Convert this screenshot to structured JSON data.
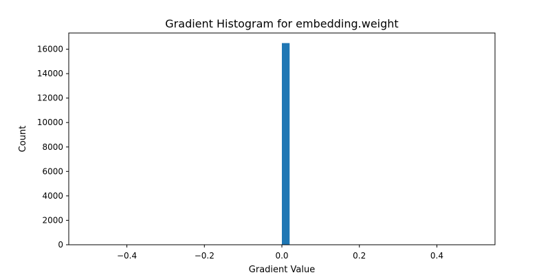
{
  "chart_data": {
    "type": "bar",
    "title": "Gradient Histogram for embedding.weight",
    "xlabel": "Gradient Value",
    "ylabel": "Count",
    "xlim": [
      -0.55,
      0.55
    ],
    "ylim": [
      0,
      17325
    ],
    "x_ticks": [
      -0.4,
      -0.2,
      0.0,
      0.2,
      0.4
    ],
    "x_tick_labels": [
      "−0.4",
      "−0.2",
      "0.0",
      "0.2",
      "0.4"
    ],
    "y_ticks": [
      0,
      2000,
      4000,
      6000,
      8000,
      10000,
      12000,
      14000,
      16000
    ],
    "y_tick_labels": [
      "0",
      "2000",
      "4000",
      "6000",
      "8000",
      "10000",
      "12000",
      "14000",
      "16000"
    ],
    "bins": [
      {
        "x0": 0.0,
        "x1": 0.02,
        "count": 16500
      }
    ],
    "bar_color": "#1f77b4",
    "grid": false,
    "legend": "none"
  }
}
